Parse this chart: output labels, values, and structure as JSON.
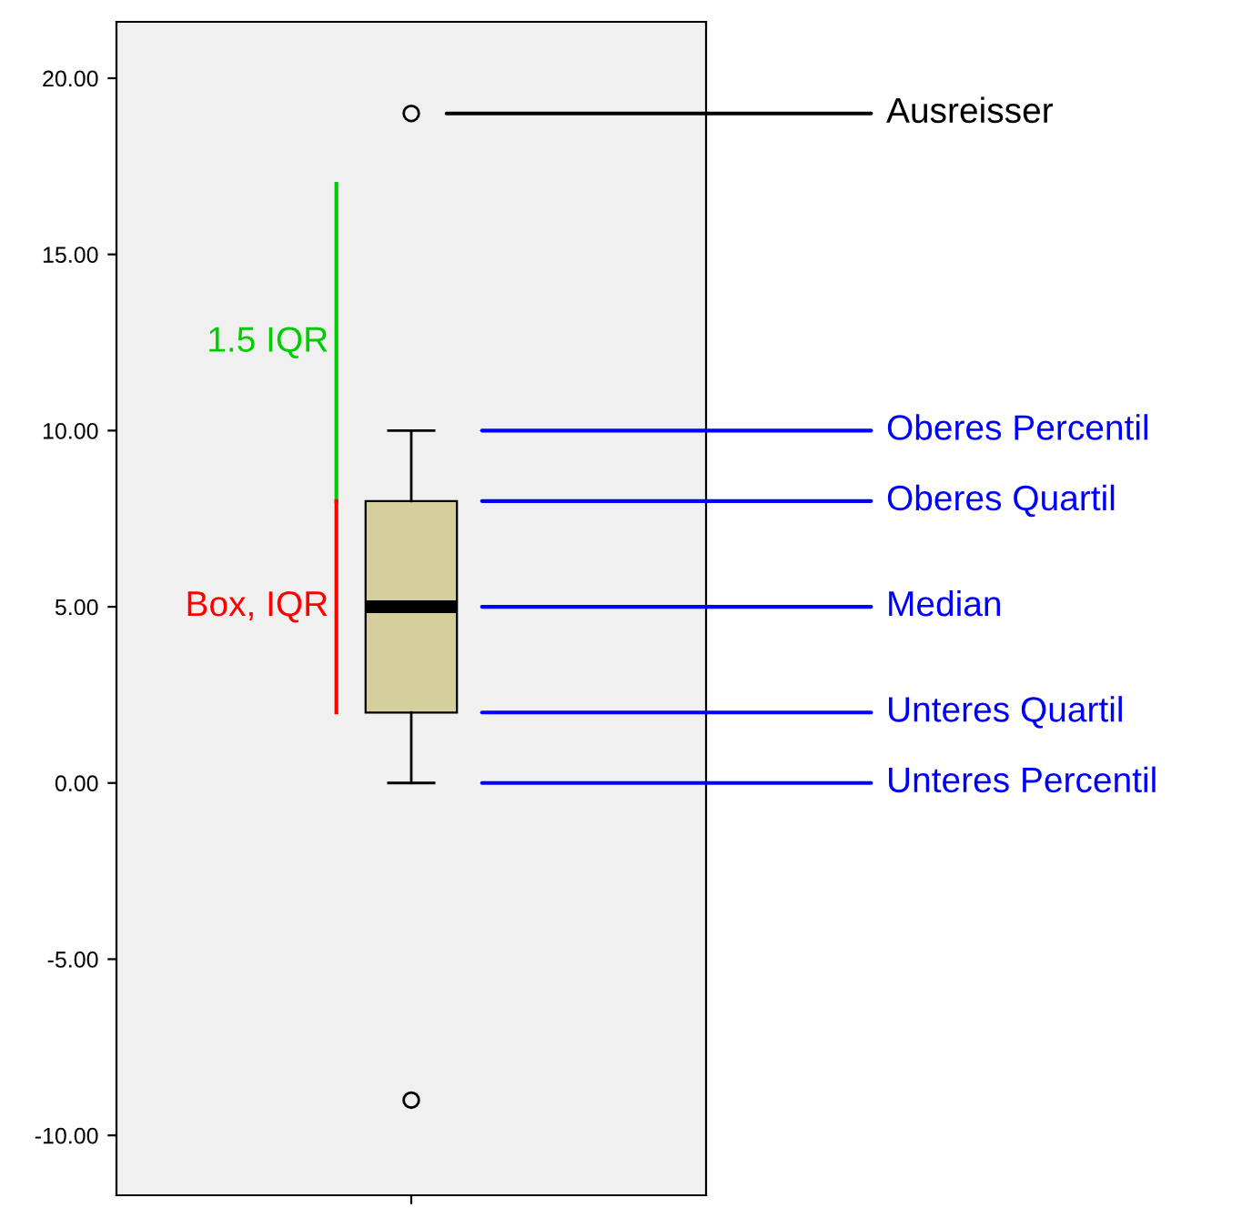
{
  "chart_data": {
    "type": "box",
    "categories": [
      null
    ],
    "boxes": [
      {
        "low": 0,
        "q1": 2,
        "median": 5,
        "q3": 8,
        "high": 10,
        "outliers": [
          19,
          -9
        ]
      }
    ],
    "color": "#d4cf9c",
    "ylim": [
      -11.7,
      21.6
    ],
    "yticks": [
      {
        "value": -10,
        "label": "-10.00"
      },
      {
        "value": -5,
        "label": "-5.00"
      },
      {
        "value": 0,
        "label": "0.00"
      },
      {
        "value": 5,
        "label": "5.00"
      },
      {
        "value": 10,
        "label": "10.00"
      },
      {
        "value": 15,
        "label": "15.00"
      },
      {
        "value": 20,
        "label": "20.00"
      }
    ],
    "grid": false,
    "legend": false,
    "annotations": [
      "Ausreisser",
      "Oberes Percentil",
      "Oberes Quartil",
      "Median",
      "Unteres Quartil",
      "Unteres Percentil",
      "1.5 IQR",
      "Box, IQR"
    ]
  }
}
